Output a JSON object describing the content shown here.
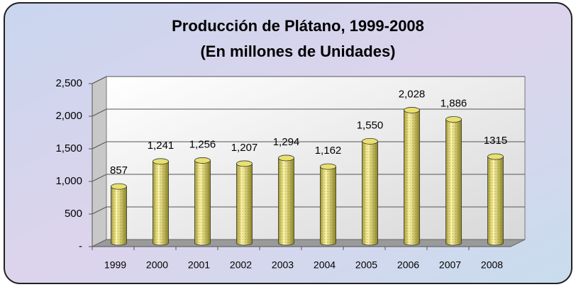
{
  "chart_data": {
    "type": "bar",
    "title": "Producción de Plátano, 1999-2008",
    "subtitle": "(En millones de Unidades)",
    "categories": [
      "1999",
      "2000",
      "2001",
      "2002",
      "2003",
      "2004",
      "2005",
      "2006",
      "2007",
      "2008"
    ],
    "values": [
      857,
      1241,
      1256,
      1207,
      1294,
      1162,
      1550,
      2028,
      1886,
      1315
    ],
    "value_labels": [
      "857",
      "1,241",
      "1,256",
      "1,207",
      "1,294",
      "1,162",
      "1,550",
      "2,028",
      "1,886",
      "1315"
    ],
    "color": "#e8e070",
    "ylim": [
      0,
      2500
    ],
    "yticks": [
      {
        "value": 0,
        "label": "-"
      },
      500,
      {
        "value": 1000,
        "label": "1,000"
      },
      {
        "value": 1500,
        "label": "1,500"
      },
      {
        "value": 2000,
        "label": "2,000"
      },
      {
        "value": 2500,
        "label": "2,500"
      }
    ],
    "grid": true
  }
}
